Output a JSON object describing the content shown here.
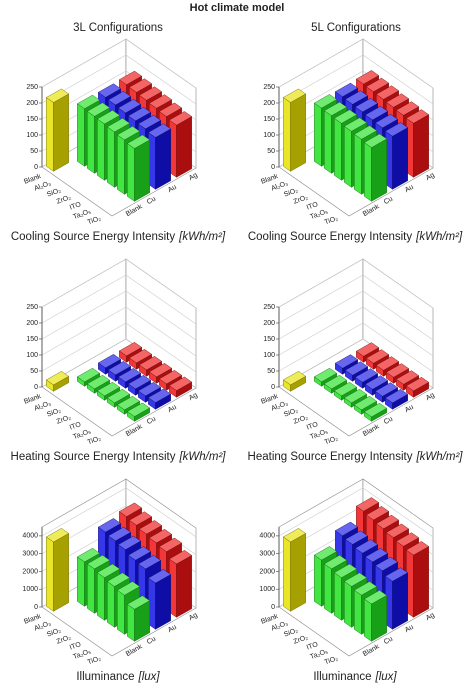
{
  "header": {
    "title": "Hot climate model",
    "columns": [
      "3L Configurations",
      "5L Configurations"
    ]
  },
  "chart_data": [
    {
      "type": "bar3d",
      "caption": "Cooling Source Energy Intensity",
      "unit": "[kWh/m²]",
      "categories": [
        "Blank",
        "Al₂O₃",
        "SiO₂",
        "ZrO₂",
        "ITO",
        "Ta₂O₅",
        "TiO₂"
      ],
      "series": [
        {
          "name": "Blank",
          "color": "#e6e000",
          "values": [
            215,
            null,
            null,
            null,
            null,
            null,
            null
          ]
        },
        {
          "name": "Cu",
          "color": "#22e022",
          "values": [
            null,
            180,
            178,
            176,
            173,
            170,
            165
          ]
        },
        {
          "name": "Au",
          "color": "#1414e6",
          "values": [
            null,
            178,
            176,
            173,
            170,
            167,
            162
          ]
        },
        {
          "name": "Ag",
          "color": "#ee1414",
          "values": [
            null,
            180,
            178,
            175,
            172,
            168,
            163
          ]
        }
      ],
      "ylim": [
        0,
        250
      ],
      "yticks": [
        0,
        50,
        100,
        150,
        200,
        250
      ],
      "grid": true
    },
    {
      "type": "bar3d",
      "caption": "Cooling Source Energy Intensity",
      "unit": "[kWh/m²]",
      "categories": [
        "Blank",
        "Al₂O₃",
        "SiO₂",
        "ZrO₂",
        "ITO",
        "Ta₂O₅",
        "TiO₂"
      ],
      "series": [
        {
          "name": "Blank",
          "color": "#e6e000",
          "values": [
            215,
            null,
            null,
            null,
            null,
            null,
            null
          ]
        },
        {
          "name": "Cu",
          "color": "#22e022",
          "values": [
            null,
            182,
            180,
            178,
            175,
            172,
            168
          ]
        },
        {
          "name": "Au",
          "color": "#1414e6",
          "values": [
            null,
            180,
            178,
            176,
            173,
            170,
            166
          ]
        },
        {
          "name": "Ag",
          "color": "#ee1414",
          "values": [
            null,
            182,
            180,
            178,
            175,
            172,
            169
          ]
        }
      ],
      "ylim": [
        0,
        250
      ],
      "yticks": [
        0,
        50,
        100,
        150,
        200,
        250
      ],
      "grid": true
    },
    {
      "type": "bar3d",
      "caption": "Heating Source Energy Intensity",
      "unit": "[kWh/m²]",
      "categories": [
        "Blank",
        "Al₂O₃",
        "SiO₂",
        "ZrO₂",
        "ITO",
        "Ta₂O₅",
        "TiO₂"
      ],
      "series": [
        {
          "name": "Blank",
          "color": "#e6e000",
          "values": [
            20,
            null,
            null,
            null,
            null,
            null,
            null
          ]
        },
        {
          "name": "Cu",
          "color": "#22e022",
          "values": [
            null,
            14,
            14,
            14,
            14,
            14,
            15
          ]
        },
        {
          "name": "Au",
          "color": "#1414e6",
          "values": [
            null,
            20,
            20,
            20,
            20,
            20,
            21
          ]
        },
        {
          "name": "Ag",
          "color": "#ee1414",
          "values": [
            null,
            20,
            20,
            20,
            20,
            20,
            21
          ]
        }
      ],
      "ylim": [
        0,
        250
      ],
      "yticks": [
        0,
        50,
        100,
        150,
        200,
        250
      ],
      "grid": true
    },
    {
      "type": "bar3d",
      "caption": "Heating Source Energy Intensity",
      "unit": "[kWh/m²]",
      "categories": [
        "Blank",
        "Al₂O₃",
        "SiO₂",
        "ZrO₂",
        "ITO",
        "Ta₂O₅",
        "TiO₂"
      ],
      "series": [
        {
          "name": "Blank",
          "color": "#e6e000",
          "values": [
            20,
            null,
            null,
            null,
            null,
            null,
            null
          ]
        },
        {
          "name": "Cu",
          "color": "#22e022",
          "values": [
            null,
            14,
            14,
            14,
            14,
            14,
            14
          ]
        },
        {
          "name": "Au",
          "color": "#1414e6",
          "values": [
            null,
            19,
            19,
            19,
            19,
            19,
            20
          ]
        },
        {
          "name": "Ag",
          "color": "#ee1414",
          "values": [
            null,
            19,
            19,
            19,
            19,
            19,
            20
          ]
        }
      ],
      "ylim": [
        0,
        250
      ],
      "yticks": [
        0,
        50,
        100,
        150,
        200,
        250
      ],
      "grid": true
    },
    {
      "type": "bar3d",
      "caption": "Illuminance",
      "unit": "[lux]",
      "categories": [
        "Blank",
        "Al₂O₃",
        "SiO₂",
        "ZrO₂",
        "ITO",
        "Ta₂O₅",
        "TiO₂"
      ],
      "series": [
        {
          "name": "Blank",
          "color": "#e6e000",
          "values": [
            3900,
            null,
            null,
            null,
            null,
            null,
            null
          ]
        },
        {
          "name": "Cu",
          "color": "#22e022",
          "values": [
            null,
            2500,
            2500,
            2400,
            2300,
            2200,
            1800
          ]
        },
        {
          "name": "Au",
          "color": "#1414e6",
          "values": [
            null,
            3500,
            3400,
            3300,
            3100,
            3000,
            2600
          ]
        },
        {
          "name": "Ag",
          "color": "#ee1414",
          "values": [
            null,
            3700,
            3600,
            3500,
            3400,
            3300,
            3000
          ]
        }
      ],
      "ylim": [
        0,
        4500
      ],
      "yticks": [
        0,
        1000,
        2000,
        3000,
        4000
      ],
      "grid": true
    },
    {
      "type": "bar3d",
      "caption": "Illuminance",
      "unit": "[lux]",
      "categories": [
        "Blank",
        "Al₂O₃",
        "SiO₂",
        "ZrO₂",
        "ITO",
        "Ta₂O₅",
        "TiO₂"
      ],
      "series": [
        {
          "name": "Blank",
          "color": "#e6e000",
          "values": [
            3900,
            null,
            null,
            null,
            null,
            null,
            null
          ]
        },
        {
          "name": "Cu",
          "color": "#22e022",
          "values": [
            null,
            2600,
            2500,
            2400,
            2300,
            2200,
            2100
          ]
        },
        {
          "name": "Au",
          "color": "#1414e6",
          "values": [
            null,
            3300,
            3200,
            3100,
            3000,
            2900,
            2700
          ]
        },
        {
          "name": "Ag",
          "color": "#ee1414",
          "values": [
            null,
            4000,
            3900,
            3800,
            3700,
            3600,
            3500
          ]
        }
      ],
      "ylim": [
        0,
        4500
      ],
      "yticks": [
        0,
        1000,
        2000,
        3000,
        4000
      ],
      "grid": true
    }
  ]
}
